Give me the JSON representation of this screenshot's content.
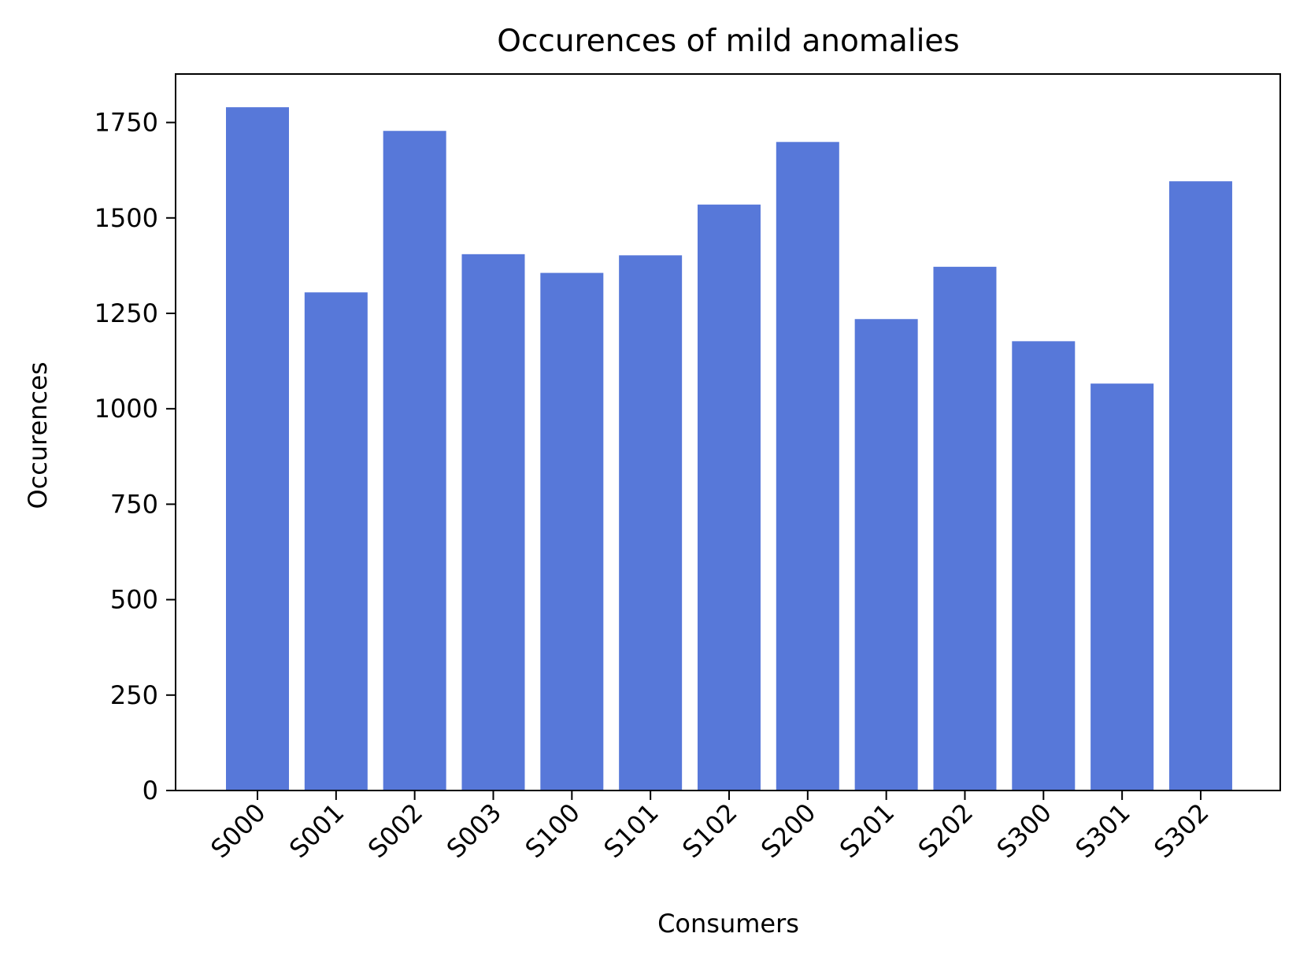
{
  "chart_data": {
    "type": "bar",
    "title": "Occurences of mild anomalies",
    "xlabel": "Consumers",
    "ylabel": "Occurences",
    "categories": [
      "S000",
      "S001",
      "S002",
      "S003",
      "S100",
      "S101",
      "S102",
      "S200",
      "S201",
      "S202",
      "S300",
      "S301",
      "S302"
    ],
    "values": [
      1790,
      1305,
      1728,
      1405,
      1356,
      1402,
      1535,
      1699,
      1235,
      1372,
      1177,
      1066,
      1596
    ],
    "ylim": [
      0,
      1877
    ],
    "yticks": [
      0,
      250,
      500,
      750,
      1000,
      1250,
      1500,
      1750
    ],
    "bar_color": "#5778d9",
    "grid": false,
    "legend": "none"
  }
}
